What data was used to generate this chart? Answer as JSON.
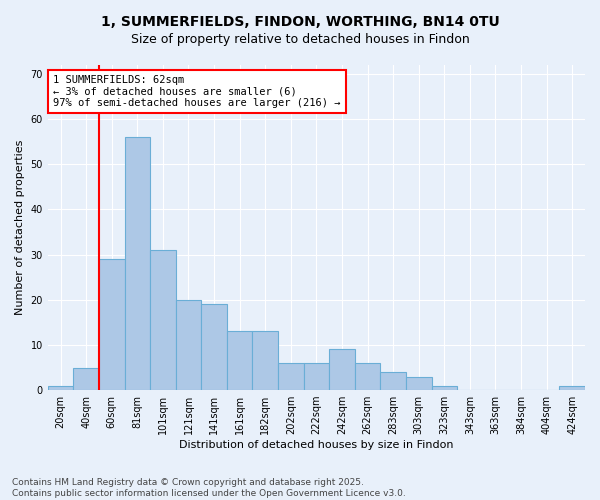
{
  "title_line1": "1, SUMMERFIELDS, FINDON, WORTHING, BN14 0TU",
  "title_line2": "Size of property relative to detached houses in Findon",
  "xlabel": "Distribution of detached houses by size in Findon",
  "ylabel": "Number of detached properties",
  "categories": [
    "20sqm",
    "40sqm",
    "60sqm",
    "81sqm",
    "101sqm",
    "121sqm",
    "141sqm",
    "161sqm",
    "182sqm",
    "202sqm",
    "222sqm",
    "242sqm",
    "262sqm",
    "283sqm",
    "303sqm",
    "323sqm",
    "343sqm",
    "363sqm",
    "384sqm",
    "404sqm",
    "424sqm"
  ],
  "values": [
    1,
    5,
    29,
    56,
    31,
    20,
    19,
    13,
    13,
    6,
    6,
    9,
    6,
    4,
    3,
    1,
    0,
    0,
    0,
    0,
    1
  ],
  "bar_color": "#adc8e6",
  "bar_edge_color": "#6aaed6",
  "vline_index": 2,
  "vline_color": "red",
  "annotation_line1": "1 SUMMERFIELDS: 62sqm",
  "annotation_line2": "← 3% of detached houses are smaller (6)",
  "annotation_line3": "97% of semi-detached houses are larger (216) →",
  "ylim": [
    0,
    72
  ],
  "yticks": [
    0,
    10,
    20,
    30,
    40,
    50,
    60,
    70
  ],
  "footer_line1": "Contains HM Land Registry data © Crown copyright and database right 2025.",
  "footer_line2": "Contains public sector information licensed under the Open Government Licence v3.0.",
  "bg_color": "#e8f0fa",
  "plot_bg_color": "#e8f0fa",
  "grid_color": "white",
  "title1_fontsize": 10,
  "title2_fontsize": 9,
  "ylabel_fontsize": 8,
  "xlabel_fontsize": 8,
  "tick_fontsize": 7,
  "footer_fontsize": 6.5
}
